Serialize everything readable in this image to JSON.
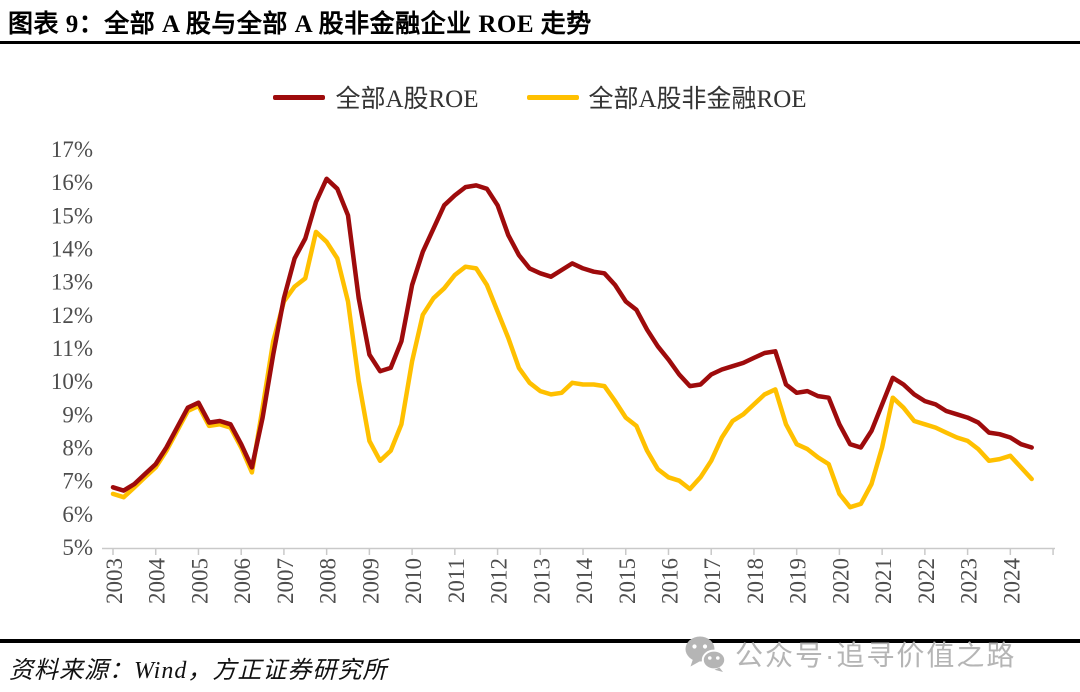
{
  "header": {
    "title": "图表 9：全部 A 股与全部 A 股非金融企业 ROE 走势"
  },
  "footer": {
    "source": "资料来源：Wind，方正证券研究所"
  },
  "watermark": {
    "icon": "wechat-icon",
    "text": "公众号·追寻价值之路"
  },
  "chart_data": {
    "type": "line",
    "title": "全部A股与全部A股非金融企业ROE走势",
    "xlabel": "",
    "ylabel": "",
    "ylim": [
      5,
      17
    ],
    "y_tick_labels": [
      "17%",
      "16%",
      "15%",
      "14%",
      "13%",
      "12%",
      "11%",
      "10%",
      "9%",
      "8%",
      "7%",
      "6%",
      "5%"
    ],
    "x_tick_labels": [
      "2003",
      "2004",
      "2005",
      "2006",
      "2007",
      "2008",
      "2009",
      "2010",
      "2011",
      "2012",
      "2013",
      "2014",
      "2015",
      "2016",
      "2017",
      "2018",
      "2019",
      "2020",
      "2021",
      "2022",
      "2023",
      "2024"
    ],
    "x_start_year": 2003,
    "points_per_year": 4,
    "grid": false,
    "legend_position": "top-center",
    "axis_color": "#c9c9c9",
    "tick_label_color": "#4d4d4d",
    "series": [
      {
        "name": "全部A股ROE",
        "color": "#9E0B0C",
        "values": [
          6.8,
          6.7,
          6.9,
          7.2,
          7.5,
          8.0,
          8.6,
          9.2,
          9.35,
          8.75,
          8.8,
          8.7,
          8.1,
          7.4,
          8.9,
          10.8,
          12.5,
          13.7,
          14.3,
          15.4,
          16.1,
          15.8,
          15.0,
          12.5,
          10.8,
          10.3,
          10.4,
          11.2,
          12.9,
          13.9,
          14.6,
          15.3,
          15.6,
          15.85,
          15.9,
          15.8,
          15.3,
          14.4,
          13.8,
          13.4,
          13.25,
          13.15,
          13.35,
          13.55,
          13.4,
          13.3,
          13.25,
          12.9,
          12.4,
          12.15,
          11.55,
          11.05,
          10.65,
          10.2,
          9.85,
          9.9,
          10.2,
          10.35,
          10.45,
          10.55,
          10.7,
          10.85,
          10.9,
          9.9,
          9.65,
          9.7,
          9.55,
          9.5,
          8.7,
          8.1,
          8.0,
          8.5,
          9.3,
          10.1,
          9.9,
          9.6,
          9.4,
          9.3,
          9.1,
          9.0,
          8.9,
          8.75,
          8.45,
          8.4,
          8.3,
          8.1,
          8.0
        ]
      },
      {
        "name": "全部A股非金融ROE",
        "color": "#FFC000",
        "values": [
          6.6,
          6.5,
          6.8,
          7.1,
          7.4,
          7.9,
          8.5,
          9.1,
          9.25,
          8.65,
          8.7,
          8.6,
          8.0,
          7.25,
          9.2,
          11.2,
          12.4,
          12.85,
          13.1,
          14.5,
          14.2,
          13.7,
          12.4,
          10.0,
          8.2,
          7.6,
          7.9,
          8.7,
          10.6,
          12.0,
          12.5,
          12.8,
          13.2,
          13.45,
          13.4,
          12.9,
          12.1,
          11.3,
          10.4,
          9.95,
          9.7,
          9.6,
          9.65,
          9.95,
          9.9,
          9.9,
          9.85,
          9.4,
          8.9,
          8.65,
          7.9,
          7.35,
          7.1,
          7.0,
          6.75,
          7.1,
          7.6,
          8.3,
          8.8,
          9.0,
          9.3,
          9.6,
          9.75,
          8.7,
          8.1,
          7.95,
          7.7,
          7.5,
          6.6,
          6.2,
          6.3,
          6.9,
          8.0,
          9.5,
          9.2,
          8.8,
          8.7,
          8.6,
          8.45,
          8.3,
          8.2,
          7.95,
          7.6,
          7.65,
          7.75,
          7.4,
          7.05
        ]
      }
    ]
  }
}
